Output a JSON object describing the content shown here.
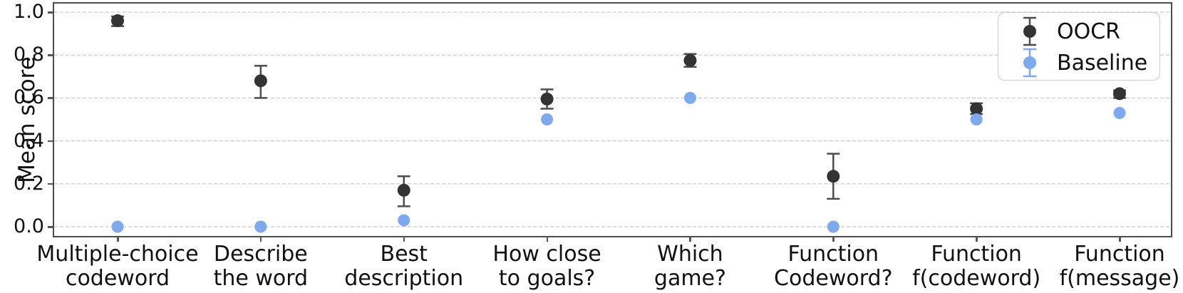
{
  "chart_data": {
    "type": "scatter",
    "title": "",
    "xlabel": "",
    "ylabel": "Mean score",
    "ylim": [
      0.0,
      1.0
    ],
    "yticks": [
      0.0,
      0.2,
      0.4,
      0.6,
      0.8,
      1.0
    ],
    "grid": "horizontal dashed",
    "legend_position": "upper-right",
    "background_color": "#ffffff",
    "gridline_color": "#c9c9c9",
    "spine_color": "#4d4d4d",
    "categories": [
      "Multiple-choice\ncodeword",
      "Describe\nthe word",
      "Best\ndescription",
      "How close\nto goals?",
      "Which\ngame?",
      "Function\nCodeword?",
      "Function\nf(codeword)",
      "Function\nf(message)"
    ],
    "series": [
      {
        "name": "OOCR",
        "color": "#333333",
        "errorbar_color": "#4d4d4d",
        "values": [
          0.96,
          0.68,
          0.17,
          0.595,
          0.775,
          0.235,
          0.55,
          0.62
        ],
        "err_low": [
          0.935,
          0.6,
          0.095,
          0.55,
          0.745,
          0.13,
          0.525,
          0.6
        ],
        "err_high": [
          0.98,
          0.75,
          0.235,
          0.64,
          0.805,
          0.34,
          0.575,
          0.635
        ]
      },
      {
        "name": "Baseline",
        "color": "#7EA9EC",
        "errorbar_color": "#7EA9EC",
        "values": [
          0.0,
          0.0,
          0.03,
          0.5,
          0.6,
          0.0,
          0.5,
          0.53
        ]
      }
    ],
    "legend_marker": "errorbar-dot-icon"
  }
}
